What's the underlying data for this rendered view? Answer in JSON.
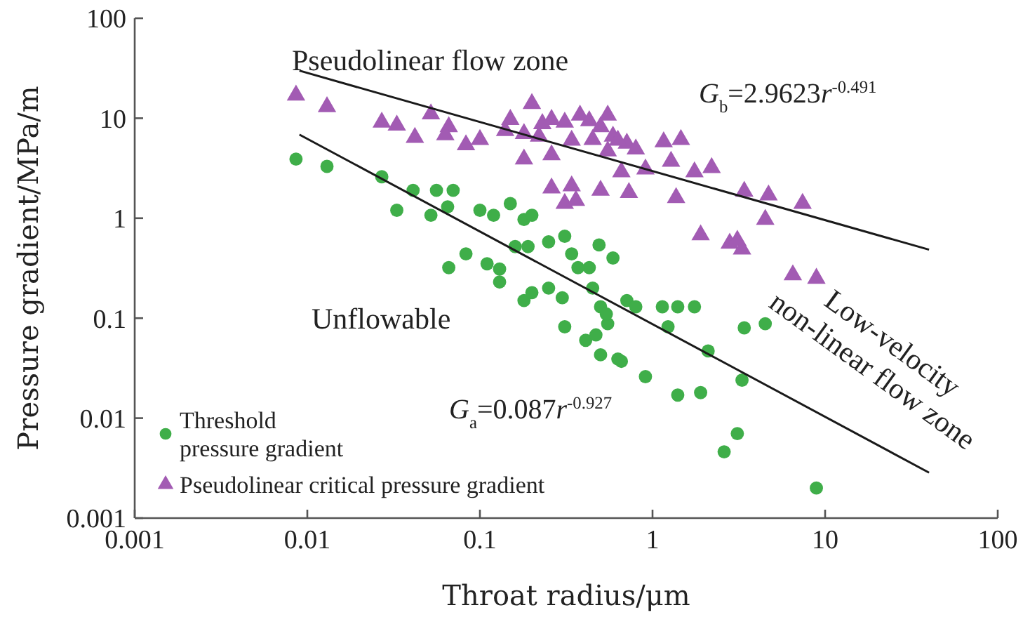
{
  "chart_data": {
    "type": "scatter",
    "xlabel": "Throat radius/μm",
    "ylabel": "Pressure gradient/MPa/m",
    "log": "xy",
    "xlim": [
      0.001,
      100
    ],
    "xticks": [
      0.001,
      0.01,
      0.1,
      1,
      10,
      100
    ],
    "ylim": [
      0.001,
      100
    ],
    "yticks": [
      0.001,
      0.01,
      0.1,
      1,
      10,
      100
    ],
    "legend": "bottom left",
    "annotations": [
      "Pseudolinear flow zone",
      "G$_{b}$=2.9623r$^{-0.491}$",
      "Unflowable",
      "G$_{a}$=0.087r$^{-0.927}$",
      "Low-velocity non-linear flow zone"
    ],
    "series": [
      {
        "name": "Threshold pressure gradient",
        "marker": "circle",
        "color": "#3fae49",
        "x": [
          0.0086,
          0.013,
          0.027,
          0.041,
          0.056,
          0.07,
          0.065,
          0.033,
          0.052,
          0.1,
          0.12,
          0.15,
          0.18,
          0.2,
          0.083,
          0.066,
          0.13,
          0.16,
          0.19,
          0.25,
          0.31,
          0.34,
          0.49,
          0.59,
          0.43,
          0.18,
          0.25,
          0.3,
          0.31,
          0.41,
          0.5,
          0.66,
          0.5,
          0.55,
          0.71,
          0.91,
          0.8,
          1.14,
          1.4,
          1.75,
          1.23,
          2.1,
          3.4,
          3.3,
          1.4,
          1.9,
          3.1,
          2.6,
          4.5,
          8.9,
          0.11,
          0.13,
          0.2,
          0.37,
          0.45,
          0.54,
          0.47,
          0.63
        ],
        "values": [
          3.9,
          3.3,
          2.6,
          1.9,
          1.9,
          1.9,
          1.3,
          1.2,
          1.07,
          1.2,
          1.07,
          1.4,
          0.97,
          1.07,
          0.44,
          0.32,
          0.31,
          0.52,
          0.52,
          0.58,
          0.66,
          0.44,
          0.54,
          0.4,
          0.32,
          0.15,
          0.2,
          0.16,
          0.082,
          0.06,
          0.043,
          0.037,
          0.13,
          0.088,
          0.15,
          0.026,
          0.13,
          0.13,
          0.13,
          0.13,
          0.082,
          0.047,
          0.08,
          0.024,
          0.017,
          0.018,
          0.007,
          0.0046,
          0.088,
          0.002,
          0.35,
          0.23,
          0.18,
          0.32,
          0.2,
          0.11,
          0.068,
          0.039
        ]
      },
      {
        "name": "Pseudolinear critical pressure gradient",
        "marker": "triangle",
        "color": "#a25bb3",
        "x": [
          0.0086,
          0.013,
          0.027,
          0.033,
          0.042,
          0.052,
          0.066,
          0.063,
          0.083,
          0.1,
          0.15,
          0.14,
          0.2,
          0.18,
          0.23,
          0.26,
          0.31,
          0.38,
          0.43,
          0.55,
          0.5,
          0.59,
          0.71,
          0.8,
          0.26,
          0.34,
          0.45,
          0.55,
          0.66,
          0.26,
          0.34,
          0.31,
          0.36,
          0.5,
          0.73,
          0.22,
          0.18,
          0.63,
          1.16,
          1.46,
          1.28,
          0.91,
          1.75,
          2.2,
          1.37,
          3.4,
          4.7,
          7.4,
          4.5,
          1.9,
          2.8,
          3.1,
          3.3,
          6.5,
          8.9
        ],
        "values": [
          17,
          13,
          9.1,
          8.5,
          6.4,
          11,
          8.2,
          6.8,
          5.4,
          6.1,
          9.7,
          7.5,
          14,
          3.9,
          8.8,
          9.7,
          9.1,
          10.7,
          9.4,
          10.7,
          8.2,
          6.6,
          5.6,
          4.9,
          4.3,
          6,
          6.1,
          4.7,
          2.9,
          2,
          2.1,
          1.4,
          1.5,
          1.9,
          1.8,
          6.6,
          7,
          6,
          5.8,
          6.1,
          3.7,
          3.1,
          2.9,
          3.2,
          1.6,
          1.85,
          1.7,
          1.4,
          0.97,
          0.68,
          0.56,
          0.6,
          0.49,
          0.27,
          0.25
        ]
      },
      {
        "type": "line",
        "marker": "none",
        "line_style": "solid",
        "color": "#1a1a1a",
        "x": [
          0.009,
          40
        ],
        "values": [
          29.9,
          0.484
        ]
      },
      {
        "type": "line",
        "marker": "none",
        "line_style": "solid",
        "color": "#1a1a1a",
        "x": [
          0.009,
          40
        ],
        "values": [
          6.86,
          0.00285
        ]
      }
    ]
  }
}
